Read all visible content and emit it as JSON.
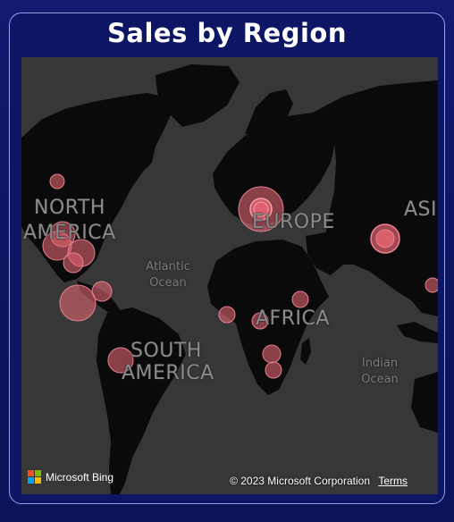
{
  "header": {
    "title": "Sales by Region"
  },
  "map": {
    "continent_labels": {
      "north_america": "NORTH AMERICA",
      "south_america": "SOUTH AMERICA",
      "europe": "EUROPE",
      "africa": "AFRICA",
      "asia": "ASI"
    },
    "ocean_labels": {
      "atlantic": "Atlantic Ocean",
      "indian": "Indian Ocean"
    },
    "bubble_color": "#e06470",
    "land_color": "#0a0a0a",
    "water_color": "#373737"
  },
  "footer": {
    "attribution_logo": "microsoft-logo",
    "attribution_text": "Microsoft Bing",
    "copyright": "© 2023 Microsoft Corporation",
    "terms": "Terms"
  }
}
